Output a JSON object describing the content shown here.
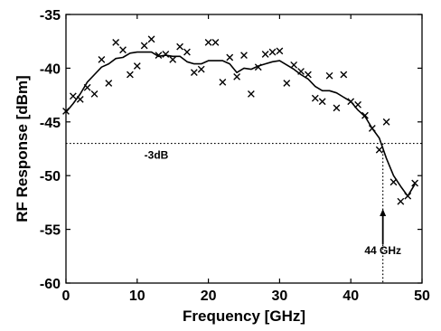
{
  "chart_data": {
    "type": "line",
    "xlabel": "Frequency [GHz]",
    "ylabel": "RF Response [dBm]",
    "xlim": [
      0,
      50
    ],
    "ylim": [
      -60,
      -35
    ],
    "x_ticks": [
      0,
      10,
      20,
      30,
      40,
      50
    ],
    "y_ticks": [
      -35,
      -40,
      -45,
      -50,
      -55,
      -60
    ],
    "grid": false,
    "legend": "none",
    "series": [
      {
        "style": "markers-x",
        "x": [
          0,
          1,
          2,
          3,
          4,
          5,
          6,
          7,
          8,
          9,
          10,
          11,
          12,
          13,
          14,
          15,
          16,
          17,
          18,
          19,
          20,
          21,
          22,
          23,
          24,
          25,
          26,
          27,
          28,
          29,
          30,
          31,
          32,
          33,
          34,
          35,
          36,
          37,
          38,
          39,
          40,
          41,
          42,
          43,
          44,
          45,
          46,
          47,
          48,
          49
        ],
        "y": [
          -44.0,
          -42.6,
          -42.9,
          -41.8,
          -42.4,
          -39.2,
          -41.4,
          -37.6,
          -38.3,
          -40.6,
          -39.8,
          -37.9,
          -37.3,
          -38.8,
          -38.7,
          -39.2,
          -38.0,
          -38.5,
          -40.4,
          -40.1,
          -37.6,
          -37.6,
          -41.3,
          -39.0,
          -40.8,
          -38.8,
          -42.4,
          -39.9,
          -38.7,
          -38.5,
          -38.4,
          -41.4,
          -39.7,
          -40.3,
          -40.6,
          -42.8,
          -43.1,
          -40.7,
          -43.7,
          -40.6,
          -43.1,
          -43.4,
          -44.4,
          -45.6,
          -47.6,
          -45.0,
          -50.6,
          -52.4,
          -51.9,
          -50.7
        ]
      },
      {
        "style": "line",
        "x": [
          0,
          1,
          2,
          3,
          4,
          5,
          6,
          7,
          8,
          9,
          10,
          11,
          12,
          13,
          14,
          15,
          16,
          17,
          18,
          19,
          20,
          21,
          22,
          23,
          24,
          25,
          26,
          27,
          28,
          29,
          30,
          31,
          32,
          33,
          34,
          35,
          36,
          37,
          38,
          39,
          40,
          41,
          42,
          43,
          44,
          45,
          46,
          47,
          48,
          49
        ],
        "y": [
          -44.1,
          -43.3,
          -42.4,
          -41.3,
          -40.6,
          -39.9,
          -39.6,
          -39.1,
          -39.0,
          -38.6,
          -38.5,
          -38.5,
          -38.5,
          -38.9,
          -38.8,
          -38.9,
          -38.9,
          -39.4,
          -39.6,
          -39.6,
          -39.3,
          -39.3,
          -39.3,
          -39.6,
          -40.4,
          -40.0,
          -40.1,
          -39.8,
          -39.6,
          -39.4,
          -39.3,
          -39.7,
          -40.1,
          -40.6,
          -41.0,
          -41.7,
          -42.1,
          -42.1,
          -42.3,
          -42.7,
          -43.1,
          -43.9,
          -44.5,
          -45.6,
          -46.5,
          -48.4,
          -50.0,
          -51.0,
          -51.9,
          -50.8
        ]
      }
    ],
    "reference_line": {
      "y": -47,
      "x_end": 44.5,
      "label": "-3dB"
    },
    "annotation": {
      "x": 44.5,
      "label": "44 GHz"
    }
  }
}
